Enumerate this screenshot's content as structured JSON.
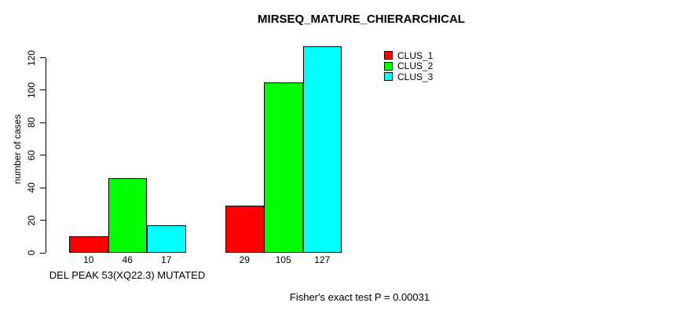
{
  "chart_data": {
    "type": "bar",
    "title": "MIRSEQ_MATURE_CHIERARCHICAL",
    "ylabel": "number of cases",
    "groups": [
      "DEL PEAK 53(XQ22.3) MUTATED",
      ""
    ],
    "series": [
      {
        "name": "CLUS_1",
        "color": "#ff0000",
        "values": [
          10,
          29
        ]
      },
      {
        "name": "CLUS_2",
        "color": "#00ff00",
        "values": [
          46,
          105
        ]
      },
      {
        "name": "CLUS_3",
        "color": "#00ffff",
        "values": [
          17,
          127
        ]
      }
    ],
    "yticks": [
      0,
      20,
      40,
      60,
      80,
      100,
      120
    ],
    "ylim": [
      0,
      127
    ],
    "grid": false,
    "legend_position": "top-right",
    "bar_value_labels_shown": true,
    "annotation": "Fisher's exact test P = 0.00031"
  }
}
